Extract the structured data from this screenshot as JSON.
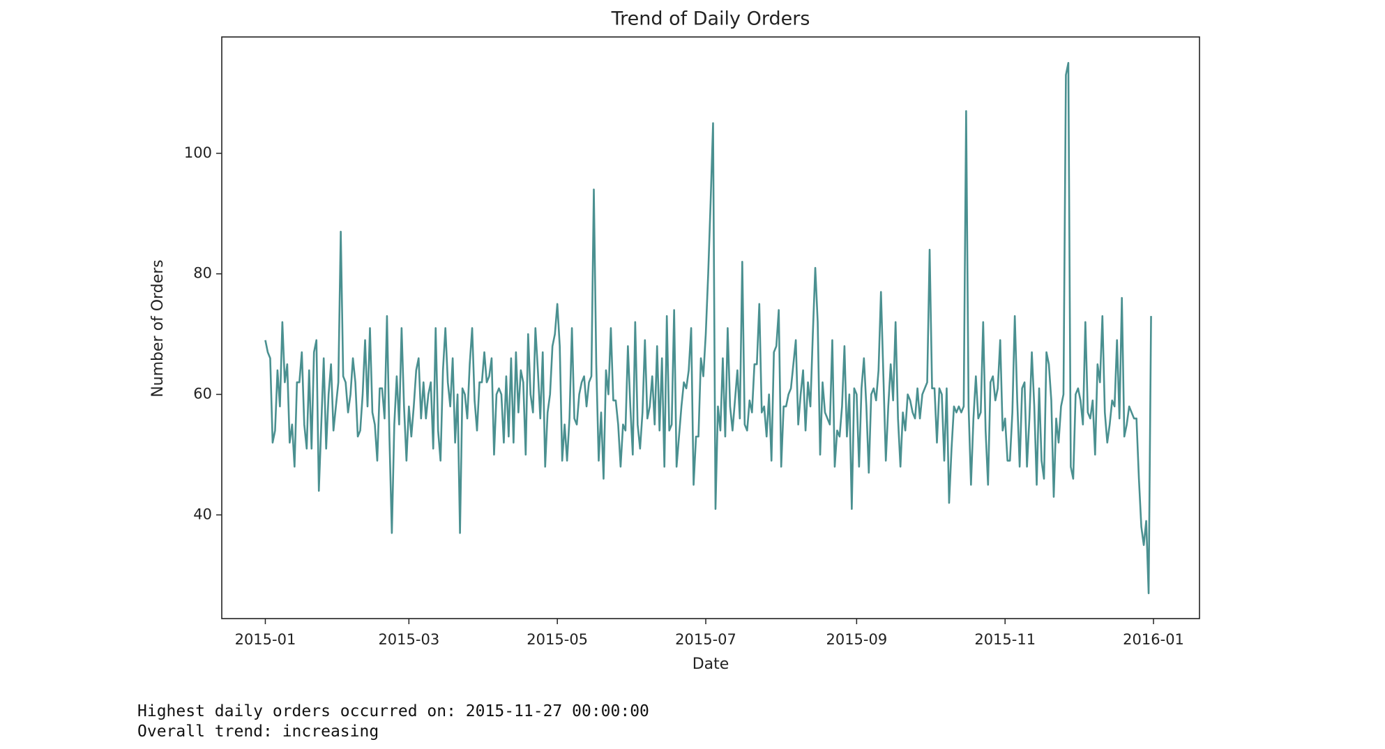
{
  "chart_data": {
    "type": "line",
    "title": "Trend of Daily Orders",
    "x_label": "Date",
    "y_label": "Number of Orders",
    "x": [
      0,
      1,
      2,
      3,
      4,
      5,
      6,
      7,
      8,
      9,
      10,
      11,
      12,
      13,
      14,
      15,
      16,
      17,
      18,
      19,
      20,
      21,
      22,
      23,
      24,
      25,
      26,
      27,
      28,
      29,
      30,
      31,
      32,
      33,
      34,
      35,
      36,
      37,
      38,
      39,
      40,
      41,
      42,
      43,
      44,
      45,
      46,
      47,
      48,
      49,
      50,
      51,
      52,
      53,
      54,
      55,
      56,
      57,
      58,
      59,
      60,
      61,
      62,
      63,
      64,
      65,
      66,
      67,
      68,
      69,
      70,
      71,
      72,
      73,
      74,
      75,
      76,
      77,
      78,
      79,
      80,
      81,
      82,
      83,
      84,
      85,
      86,
      87,
      88,
      89,
      90,
      91,
      92,
      93,
      94,
      95,
      96,
      97,
      98,
      99,
      100,
      101,
      102,
      103,
      104,
      105,
      106,
      107,
      108,
      109,
      110,
      111,
      112,
      113,
      114,
      115,
      116,
      117,
      118,
      119,
      120,
      121,
      122,
      123,
      124,
      125,
      126,
      127,
      128,
      129,
      130,
      131,
      132,
      133,
      134,
      135,
      136,
      137,
      138,
      139,
      140,
      141,
      142,
      143,
      144,
      145,
      146,
      147,
      148,
      149,
      150,
      151,
      152,
      153,
      154,
      155,
      156,
      157,
      158,
      159,
      160,
      161,
      162,
      163,
      164,
      165,
      166,
      167,
      168,
      169,
      170,
      171,
      172,
      173,
      174,
      175,
      176,
      177,
      178,
      179,
      180,
      181,
      182,
      183,
      184,
      185,
      186,
      187,
      188,
      189,
      190,
      191,
      192,
      193,
      194,
      195,
      196,
      197,
      198,
      199,
      200,
      201,
      202,
      203,
      204,
      205,
      206,
      207,
      208,
      209,
      210,
      211,
      212,
      213,
      214,
      215,
      216,
      217,
      218,
      219,
      220,
      221,
      222,
      223,
      224,
      225,
      226,
      227,
      228,
      229,
      230,
      231,
      232,
      233,
      234,
      235,
      236,
      237,
      238,
      239,
      240,
      241,
      242,
      243,
      244,
      245,
      246,
      247,
      248,
      249,
      250,
      251,
      252,
      253,
      254,
      255,
      256,
      257,
      258,
      259,
      260,
      261,
      262,
      263,
      264,
      265,
      266,
      267,
      268,
      269,
      270,
      271,
      272,
      273,
      274,
      275,
      276,
      277,
      278,
      279,
      280,
      281,
      282,
      283,
      284,
      285,
      286,
      287,
      288,
      289,
      290,
      291,
      292,
      293,
      294,
      295,
      296,
      297,
      298,
      299,
      300,
      301,
      302,
      303,
      304,
      305,
      306,
      307,
      308,
      309,
      310,
      311,
      312,
      313,
      314,
      315,
      316,
      317,
      318,
      319,
      320,
      321,
      322,
      323,
      324,
      325,
      326,
      327,
      328,
      329,
      330,
      331,
      332,
      333,
      334,
      335,
      336,
      337,
      338,
      339,
      340,
      341,
      342,
      343,
      344,
      345,
      346,
      347,
      348,
      349,
      350,
      351,
      352,
      353,
      354,
      355,
      356,
      357,
      358,
      359,
      360,
      361,
      362,
      363,
      364
    ],
    "series": [
      {
        "name": "Daily Orders",
        "color": "#4a9090",
        "values": [
          69,
          67,
          66,
          52,
          54,
          64,
          58,
          72,
          62,
          65,
          52,
          55,
          48,
          62,
          62,
          67,
          55,
          51,
          64,
          51,
          67,
          69,
          44,
          55,
          66,
          51,
          60,
          65,
          54,
          58,
          62,
          87,
          63,
          62,
          57,
          60,
          66,
          62,
          53,
          54,
          60,
          69,
          58,
          71,
          57,
          55,
          49,
          61,
          61,
          56,
          73,
          53,
          37,
          55,
          63,
          55,
          71,
          58,
          49,
          58,
          53,
          58,
          64,
          66,
          56,
          62,
          56,
          60,
          62,
          51,
          71,
          54,
          49,
          64,
          71,
          62,
          58,
          66,
          52,
          60,
          37,
          61,
          60,
          56,
          65,
          71,
          59,
          54,
          62,
          62,
          67,
          62,
          63,
          66,
          50,
          60,
          61,
          60,
          52,
          63,
          53,
          66,
          52,
          67,
          57,
          64,
          62,
          50,
          70,
          60,
          57,
          71,
          64,
          56,
          67,
          48,
          57,
          60,
          68,
          70,
          75,
          68,
          49,
          55,
          49,
          56,
          71,
          56,
          55,
          60,
          62,
          63,
          58,
          62,
          63,
          94,
          65,
          49,
          57,
          46,
          64,
          60,
          71,
          59,
          59,
          55,
          48,
          55,
          54,
          68,
          58,
          50,
          72,
          55,
          51,
          57,
          69,
          56,
          58,
          63,
          55,
          68,
          54,
          66,
          48,
          73,
          54,
          55,
          74,
          48,
          53,
          58,
          62,
          61,
          64,
          71,
          45,
          53,
          53,
          66,
          63,
          70,
          80,
          92,
          105,
          41,
          58,
          54,
          66,
          53,
          71,
          58,
          54,
          59,
          64,
          56,
          82,
          55,
          54,
          59,
          57,
          65,
          65,
          75,
          57,
          58,
          53,
          60,
          49,
          67,
          68,
          74,
          48,
          58,
          58,
          60,
          61,
          65,
          69,
          55,
          60,
          64,
          54,
          62,
          58,
          70,
          81,
          72,
          50,
          62,
          57,
          56,
          55,
          69,
          48,
          54,
          53,
          58,
          68,
          53,
          60,
          41,
          61,
          60,
          48,
          61,
          66,
          58,
          47,
          60,
          61,
          59,
          64,
          77,
          63,
          49,
          58,
          65,
          59,
          72,
          56,
          48,
          57,
          54,
          60,
          59,
          57,
          56,
          61,
          56,
          60,
          61,
          62,
          84,
          61,
          61,
          52,
          61,
          60,
          49,
          61,
          42,
          51,
          58,
          57,
          58,
          57,
          58,
          107,
          58,
          45,
          56,
          63,
          56,
          57,
          72,
          54,
          45,
          62,
          63,
          59,
          61,
          69,
          54,
          56,
          49,
          49,
          57,
          73,
          59,
          48,
          61,
          62,
          48,
          56,
          67,
          58,
          45,
          61,
          49,
          46,
          67,
          65,
          59,
          43,
          56,
          52,
          58,
          60,
          113,
          115,
          48,
          46,
          60,
          61,
          59,
          55,
          72,
          57,
          56,
          59,
          50,
          65,
          62,
          73,
          57,
          52,
          55,
          59,
          58,
          69,
          56,
          76,
          53,
          55,
          58,
          57,
          56,
          56,
          46,
          38,
          35,
          39,
          27,
          73
        ]
      }
    ],
    "xlim": [
      -17.9,
      383.9
    ],
    "xticks": [
      {
        "value": 0,
        "label": "2015-01"
      },
      {
        "value": 59,
        "label": "2015-03"
      },
      {
        "value": 120,
        "label": "2015-05"
      },
      {
        "value": 181,
        "label": "2015-07"
      },
      {
        "value": 243,
        "label": "2015-09"
      },
      {
        "value": 304,
        "label": "2015-11"
      },
      {
        "value": 365,
        "label": "2016-01"
      }
    ],
    "ylim": [
      22.8,
      119.3
    ],
    "yticks": [
      40,
      60,
      80,
      100
    ],
    "grid": false
  },
  "output_lines": [
    "Highest daily orders occurred on: 2015-11-27 00:00:00",
    "Overall trend: increasing"
  ]
}
